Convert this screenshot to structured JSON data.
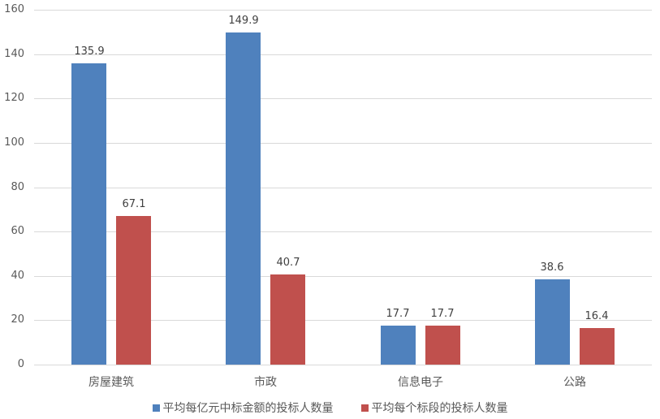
{
  "chart_data": {
    "type": "bar",
    "title": "",
    "xlabel": "",
    "ylabel": "",
    "ylim": [
      0,
      160
    ],
    "yticks": [
      0,
      20,
      40,
      60,
      80,
      100,
      120,
      140,
      160
    ],
    "grid": true,
    "legend_position": "bottom",
    "categories": [
      "房屋建筑",
      "市政",
      "信息电子",
      "公路"
    ],
    "series": [
      {
        "name": "平均每亿元中标金额的投标人数量",
        "color": "#4f81bd",
        "values": [
          135.9,
          149.9,
          17.7,
          38.6
        ]
      },
      {
        "name": "平均每个标段的投标人数量",
        "color": "#c0504d",
        "values": [
          67.1,
          40.7,
          17.7,
          16.4
        ]
      }
    ]
  }
}
